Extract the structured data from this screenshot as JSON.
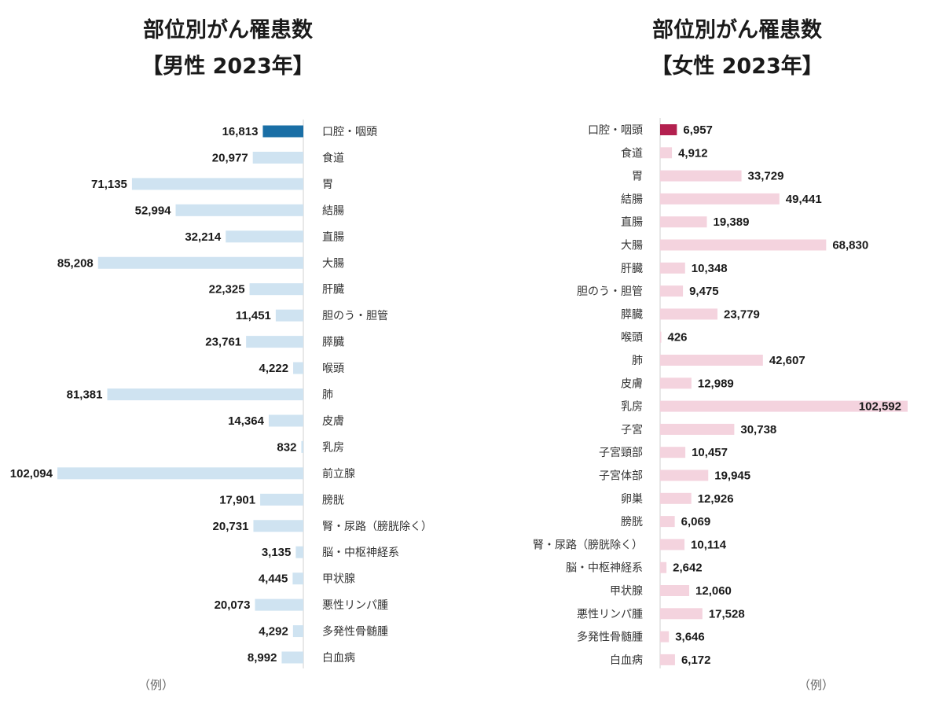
{
  "chart_data": [
    {
      "type": "bar",
      "title": "部位別がん罹患数",
      "subtitle": "【男性 2023年】",
      "note": "（例）",
      "highlight_color": "#1a6fa6",
      "bar_color": "#cfe3f1",
      "categories": [
        "口腔・咽頭",
        "食道",
        "胃",
        "結腸",
        "直腸",
        "大腸",
        "肝臓",
        "胆のう・胆管",
        "膵臓",
        "喉頭",
        "肺",
        "皮膚",
        "乳房",
        "前立腺",
        "膀胱",
        "腎・尿路（膀胱除く）",
        "脳・中枢神経系",
        "甲状腺",
        "悪性リンパ腫",
        "多発性骨髄腫",
        "白血病"
      ],
      "values": [
        16813,
        20977,
        71135,
        52994,
        32214,
        85208,
        22325,
        11451,
        23761,
        4222,
        81381,
        14364,
        832,
        102094,
        17901,
        20731,
        3135,
        4445,
        20073,
        4292,
        8992
      ],
      "value_labels": [
        "16,813",
        "20,977",
        "71,135",
        "52,994",
        "32,214",
        "85,208",
        "22,325",
        "11,451",
        "23,761",
        "4,222",
        "81,381",
        "14,364",
        "832",
        "102,094",
        "17,901",
        "20,731",
        "3,135",
        "4,445",
        "20,073",
        "4,292",
        "8,992"
      ]
    },
    {
      "type": "bar",
      "title": "部位別がん罹患数",
      "subtitle": "【女性 2023年】",
      "note": "（例）",
      "highlight_color": "#b3204f",
      "bar_color": "#f4d3de",
      "categories": [
        "口腔・咽頭",
        "食道",
        "胃",
        "結腸",
        "直腸",
        "大腸",
        "肝臓",
        "胆のう・胆管",
        "膵臓",
        "喉頭",
        "肺",
        "皮膚",
        "乳房",
        "子宮",
        "子宮頸部",
        "子宮体部",
        "卵巣",
        "膀胱",
        "腎・尿路（膀胱除く）",
        "脳・中枢神経系",
        "甲状腺",
        "悪性リンパ腫",
        "多発性骨髄腫",
        "白血病"
      ],
      "values": [
        6957,
        4912,
        33729,
        49441,
        19389,
        68830,
        10348,
        9475,
        23779,
        426,
        42607,
        12989,
        102592,
        30738,
        10457,
        19945,
        12926,
        6069,
        10114,
        2642,
        12060,
        17528,
        3646,
        6172
      ],
      "value_labels": [
        "6,957",
        "4,912",
        "33,729",
        "49,441",
        "19,389",
        "68,830",
        "10,348",
        "9,475",
        "23,779",
        "426",
        "42,607",
        "12,989",
        "102,592",
        "30,738",
        "10,457",
        "19,945",
        "12,926",
        "6,069",
        "10,114",
        "2,642",
        "12,060",
        "17,528",
        "3,646",
        "6,172"
      ]
    }
  ]
}
